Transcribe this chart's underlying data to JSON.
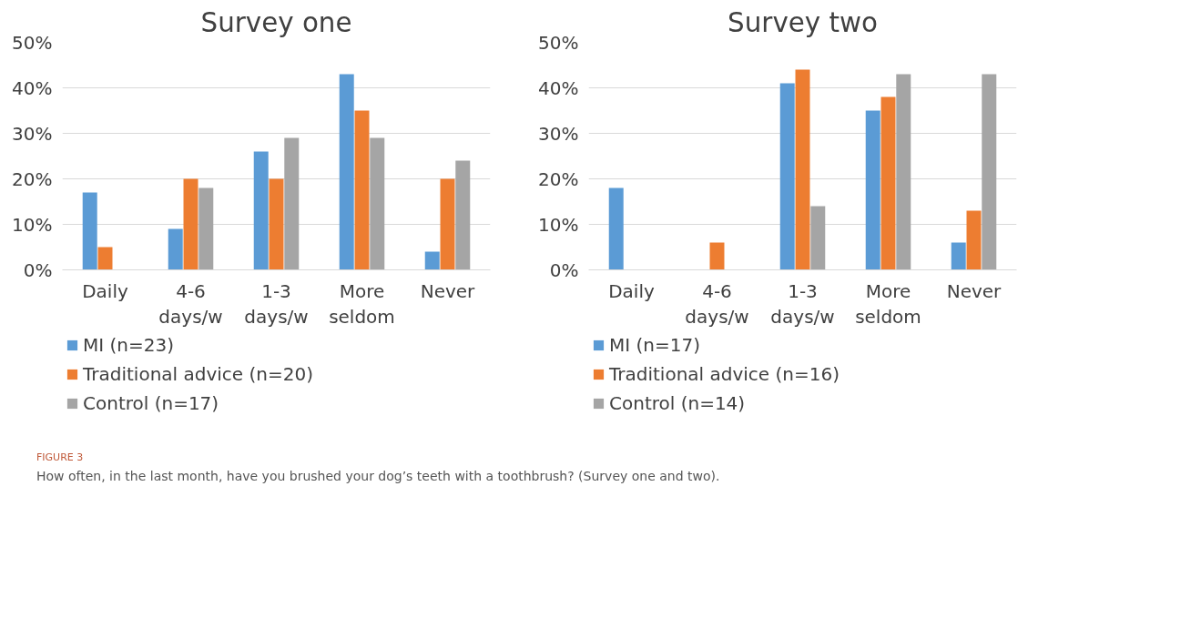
{
  "chart_data": [
    {
      "type": "bar",
      "title": "Survey one",
      "categories": [
        "Daily",
        "4-6\ndays/w",
        "1-3\ndays/w",
        "More\nseldom",
        "Never"
      ],
      "series": [
        {
          "name": "MI (n=23)",
          "color": "#5b9bd5",
          "values": [
            17,
            9,
            26,
            43,
            4
          ]
        },
        {
          "name": "Traditional advice (n=20)",
          "color": "#ed7d31",
          "values": [
            5,
            20,
            20,
            35,
            20
          ]
        },
        {
          "name": "Control (n=17)",
          "color": "#a5a5a5",
          "values": [
            0,
            18,
            29,
            29,
            24
          ]
        }
      ],
      "ylim": [
        0,
        50
      ],
      "yticks": [
        {
          "value": 0,
          "label": "0%"
        },
        {
          "value": 10,
          "label": "10%"
        },
        {
          "value": 20,
          "label": "20%"
        },
        {
          "value": 30,
          "label": "30%"
        },
        {
          "value": 40,
          "label": "40%"
        },
        {
          "value": 50,
          "label": "50%"
        }
      ],
      "grid": "y",
      "legend": "bottom",
      "annotations": [
        "FIGURE 3",
        "How often, in the last month, have you brushed your dog’s teeth with a toothbrush? (Survey one and two)."
      ]
    },
    {
      "type": "bar",
      "title": "Survey two",
      "categories": [
        "Daily",
        "4-6\ndays/w",
        "1-3\ndays/w",
        "More\nseldom",
        "Never"
      ],
      "series": [
        {
          "name": "MI (n=17)",
          "color": "#5b9bd5",
          "values": [
            18,
            0,
            41,
            35,
            6
          ]
        },
        {
          "name": "Traditional advice (n=16)",
          "color": "#ed7d31",
          "values": [
            0,
            6,
            44,
            38,
            13
          ]
        },
        {
          "name": "Control (n=14)",
          "color": "#a5a5a5",
          "values": [
            0,
            0,
            14,
            43,
            43
          ]
        }
      ],
      "ylim": [
        0,
        50
      ],
      "yticks": [
        {
          "value": 0,
          "label": "0%"
        },
        {
          "value": 10,
          "label": "10%"
        },
        {
          "value": 20,
          "label": "20%"
        },
        {
          "value": 30,
          "label": "30%"
        },
        {
          "value": 40,
          "label": "40%"
        },
        {
          "value": 50,
          "label": "50%"
        }
      ],
      "grid": "y",
      "legend": "bottom"
    }
  ]
}
